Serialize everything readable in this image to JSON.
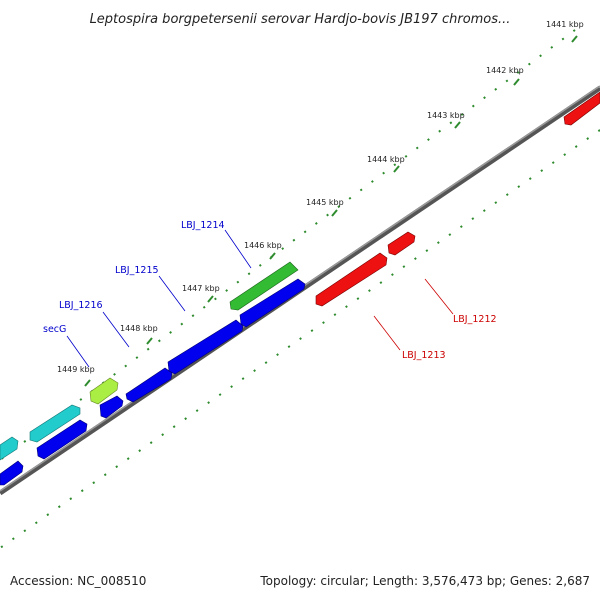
{
  "title": "Leptospira borgpetersenii serovar Hardjo-bovis JB197 chromos...",
  "footer": {
    "accession": "Accession: NC_008510",
    "summary": "Topology: circular; Length: 3,576,473 bp; Genes: 2,687"
  },
  "colors": {
    "backbone": "#808080",
    "tick": "#2e8b2e",
    "forward_cds": "#0000ee",
    "reverse_cds": "#ee1111",
    "named_forward": "#33bb33",
    "secg": "#aaee44",
    "cyan_cds": "#22cccc",
    "label_forward": "#0000cc",
    "label_reverse": "#cc0000"
  },
  "ticks": [
    {
      "label": "1441 kbp"
    },
    {
      "label": "1442 kbp"
    },
    {
      "label": "1443 kbp"
    },
    {
      "label": "1444 kbp"
    },
    {
      "label": "1445 kbp"
    },
    {
      "label": "1446 kbp"
    },
    {
      "label": "1447 kbp"
    },
    {
      "label": "1448 kbp"
    },
    {
      "label": "1449 kbp"
    }
  ],
  "gene_labels": [
    {
      "name": "LBJ_1214",
      "strand": "forward"
    },
    {
      "name": "LBJ_1215",
      "strand": "forward"
    },
    {
      "name": "LBJ_1216",
      "strand": "forward"
    },
    {
      "name": "secG",
      "strand": "forward"
    },
    {
      "name": "LBJ_1212",
      "strand": "reverse"
    },
    {
      "name": "LBJ_1213",
      "strand": "reverse"
    }
  ]
}
